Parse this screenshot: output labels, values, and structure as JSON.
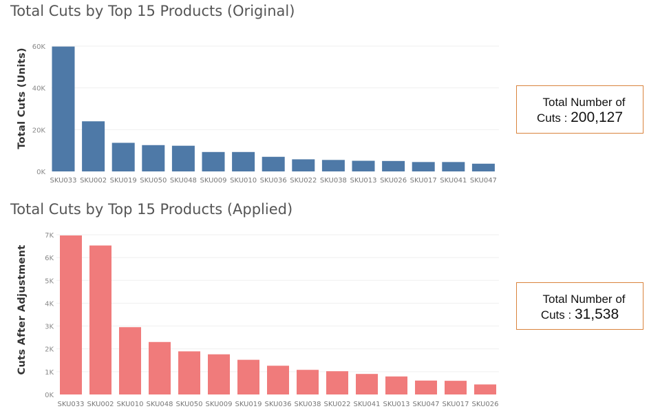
{
  "chart_data": [
    {
      "type": "bar",
      "title": "Total Cuts by Top 15 Products (Original)",
      "xlabel": "",
      "ylabel": "Total Cuts (Units)",
      "categories": [
        "SKU033",
        "SKU002",
        "SKU019",
        "SKU050",
        "SKU048",
        "SKU009",
        "SKU010",
        "SKU036",
        "SKU022",
        "SKU038",
        "SKU013",
        "SKU026",
        "SKU017",
        "SKU041",
        "SKU047"
      ],
      "values": [
        59800,
        24000,
        13700,
        12600,
        12300,
        9300,
        9300,
        7000,
        5800,
        5500,
        5100,
        5000,
        4500,
        4500,
        3700
      ],
      "ylim": [
        0,
        60000
      ],
      "yticks": [
        0,
        20000,
        40000,
        60000
      ],
      "ytick_labels": [
        "0K",
        "20K",
        "40K",
        "60K"
      ],
      "bar_color": "#4e79a7",
      "grid": true
    },
    {
      "type": "bar",
      "title": "Total Cuts by Top 15 Products (Applied)",
      "xlabel": "",
      "ylabel": "Cuts After Adjustment",
      "categories": [
        "SKU033",
        "SKU002",
        "SKU010",
        "SKU048",
        "SKU050",
        "SKU009",
        "SKU019",
        "SKU036",
        "SKU038",
        "SKU022",
        "SKU041",
        "SKU013",
        "SKU047",
        "SKU017",
        "SKU026"
      ],
      "values": [
        6970,
        6530,
        2950,
        2300,
        1890,
        1760,
        1520,
        1260,
        1080,
        1020,
        900,
        790,
        610,
        600,
        440
      ],
      "ylim": [
        0,
        7000
      ],
      "yticks": [
        0,
        1000,
        2000,
        3000,
        4000,
        5000,
        6000,
        7000
      ],
      "ytick_labels": [
        "0K",
        "1K",
        "2K",
        "3K",
        "4K",
        "5K",
        "6K",
        "7K"
      ],
      "bar_color": "#f07b7b",
      "grid": true
    }
  ],
  "kpis": [
    {
      "line1": "Total Number of",
      "line2_prefix": "Cuts : ",
      "value": "200,127"
    },
    {
      "line1": "Total Number of",
      "line2_prefix": "Cuts : ",
      "value": "31,538"
    }
  ]
}
